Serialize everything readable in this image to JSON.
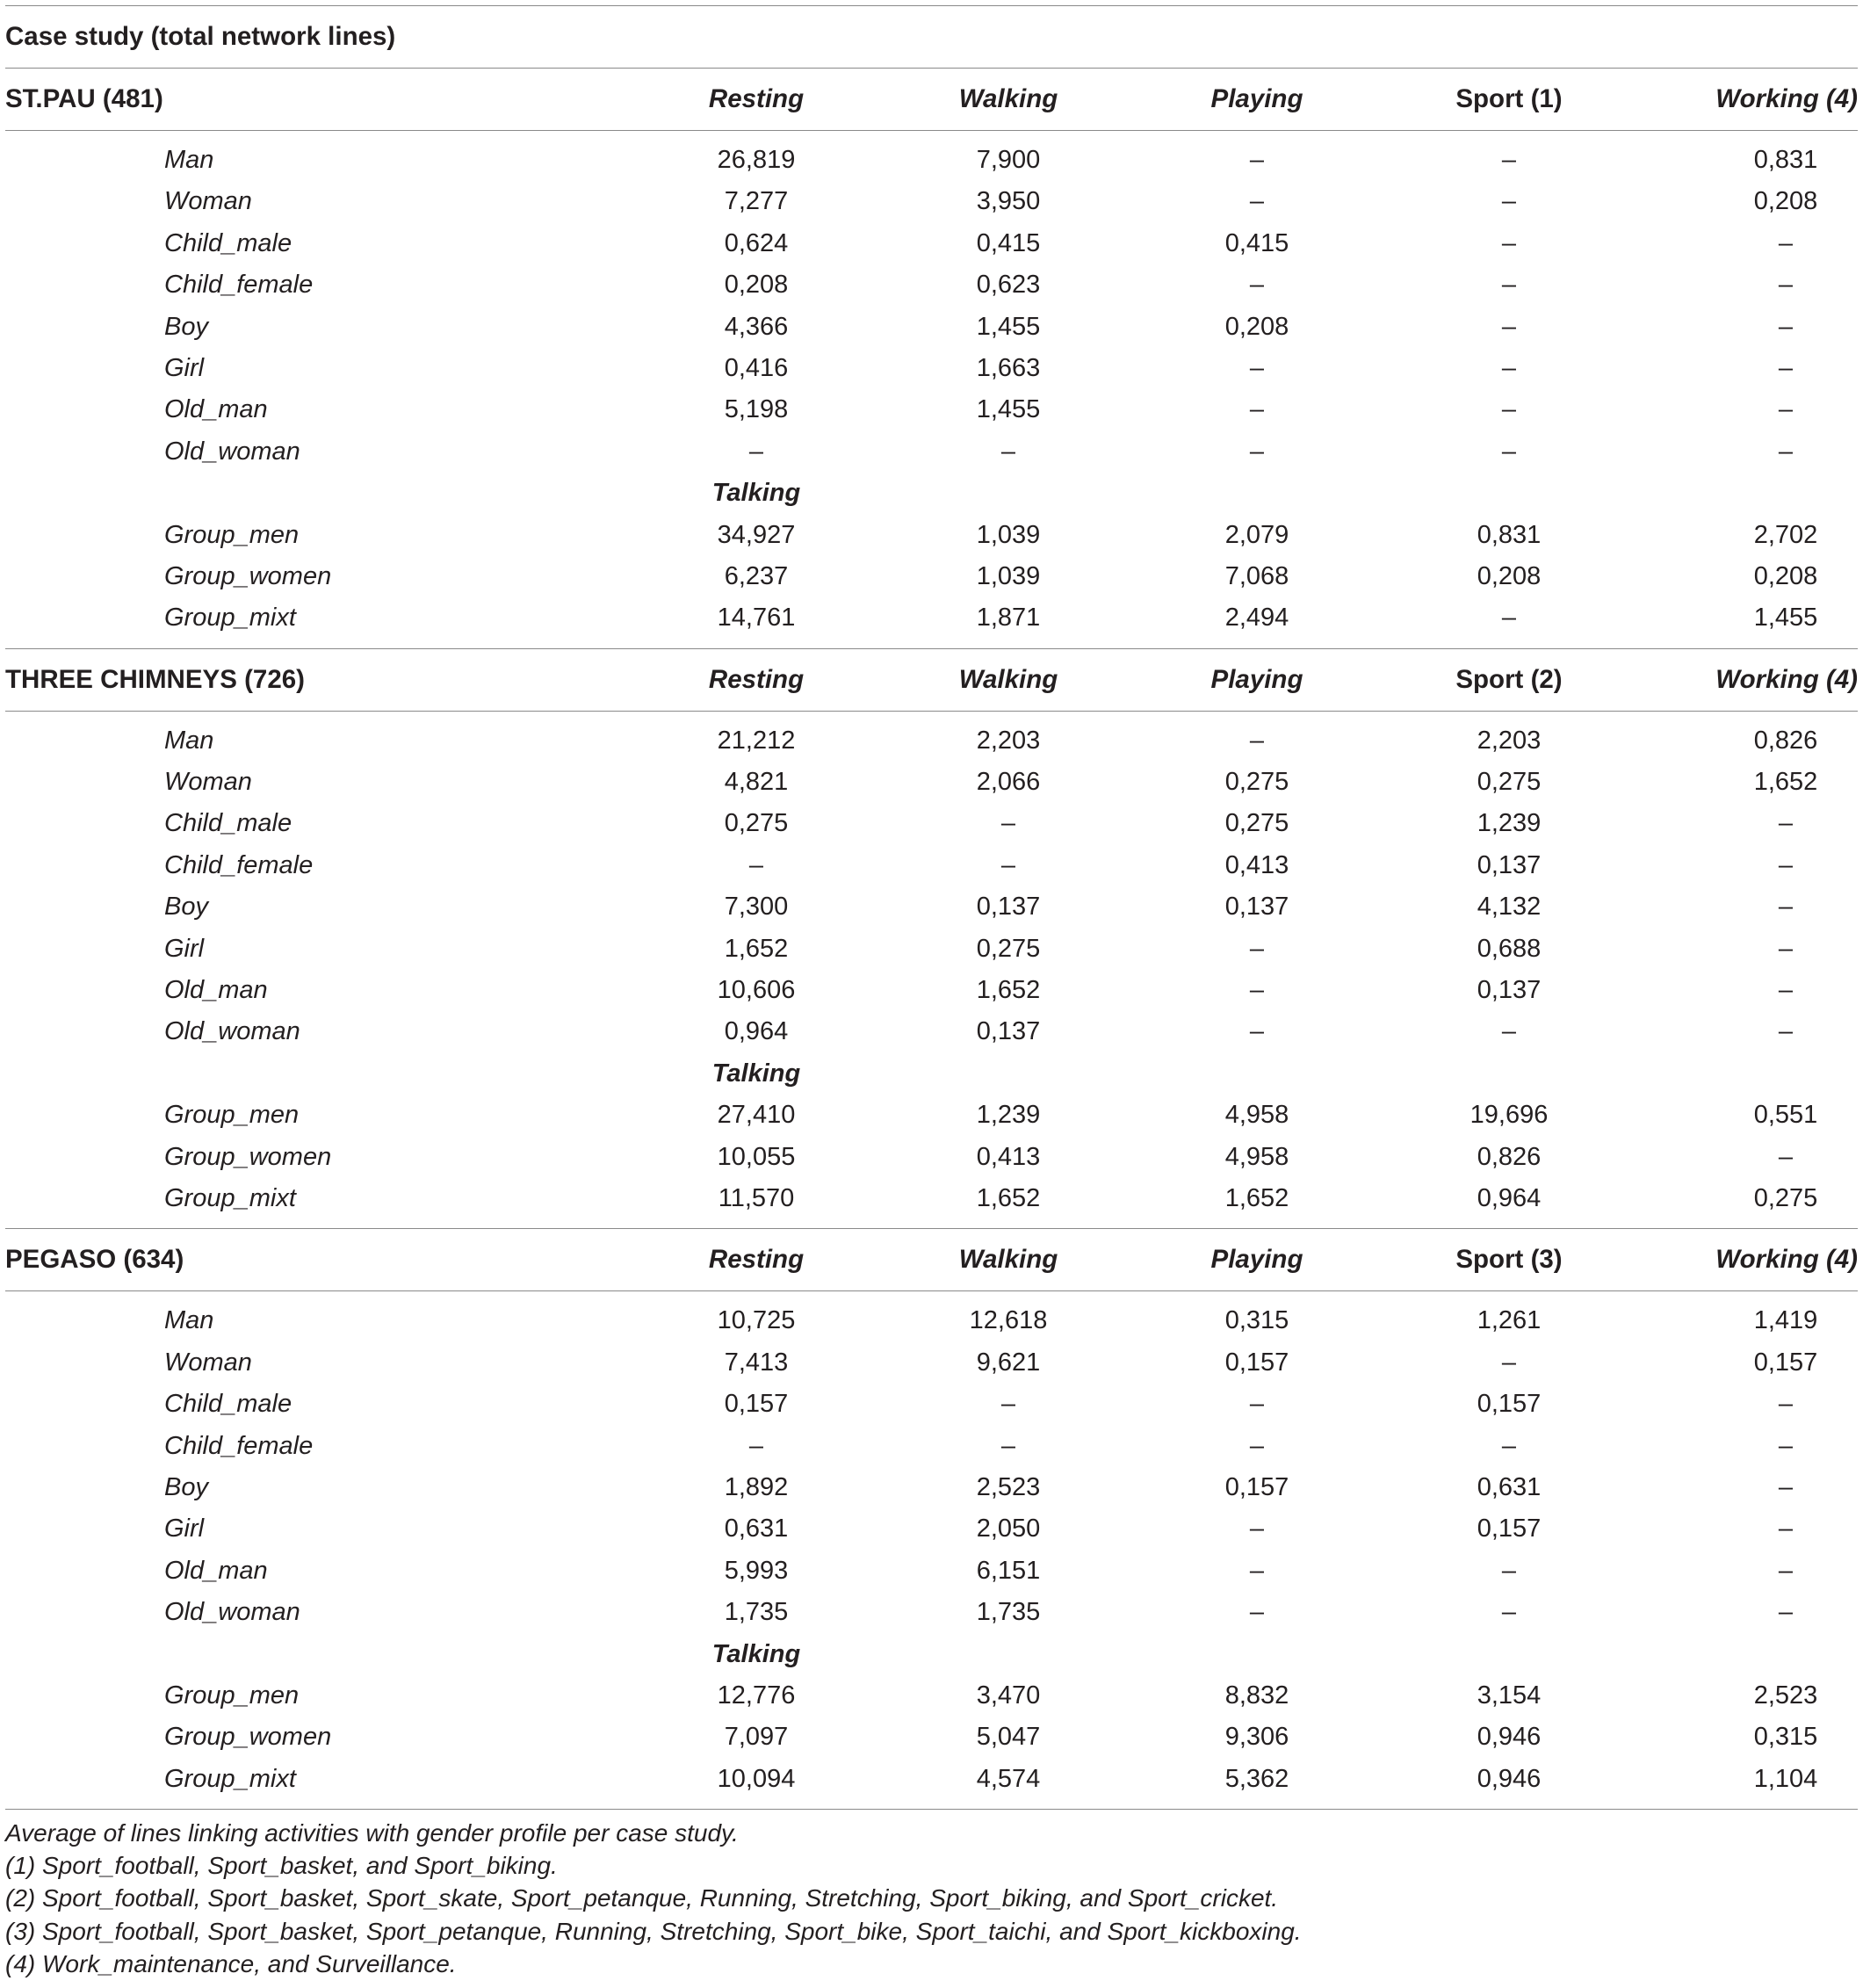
{
  "table": {
    "title": "Case study (total network lines)",
    "talking_label": "Talking",
    "sections": [
      {
        "name": "ST.PAU (481)",
        "columns": [
          "Resting",
          "Walking",
          "Playing",
          "Sport (1)",
          "Working (4)"
        ],
        "rows": [
          {
            "label": "Man",
            "values": [
              "26,819",
              "7,900",
              "–",
              "–",
              "0,831"
            ]
          },
          {
            "label": "Woman",
            "values": [
              "7,277",
              "3,950",
              "–",
              "–",
              "0,208"
            ]
          },
          {
            "label": "Child_male",
            "values": [
              "0,624",
              "0,415",
              "0,415",
              "–",
              "–"
            ]
          },
          {
            "label": "Child_female",
            "values": [
              "0,208",
              "0,623",
              "–",
              "–",
              "–"
            ]
          },
          {
            "label": "Boy",
            "values": [
              "4,366",
              "1,455",
              "0,208",
              "–",
              "–"
            ]
          },
          {
            "label": "Girl",
            "values": [
              "0,416",
              "1,663",
              "–",
              "–",
              "–"
            ]
          },
          {
            "label": "Old_man",
            "values": [
              "5,198",
              "1,455",
              "–",
              "–",
              "–"
            ]
          },
          {
            "label": "Old_woman",
            "values": [
              "–",
              "–",
              "–",
              "–",
              "–"
            ]
          }
        ],
        "group_rows": [
          {
            "label": "Group_men",
            "values": [
              "34,927",
              "1,039",
              "2,079",
              "0,831",
              "2,702"
            ]
          },
          {
            "label": "Group_women",
            "values": [
              "6,237",
              "1,039",
              "7,068",
              "0,208",
              "0,208"
            ]
          },
          {
            "label": "Group_mixt",
            "values": [
              "14,761",
              "1,871",
              "2,494",
              "–",
              "1,455"
            ]
          }
        ]
      },
      {
        "name": "THREE CHIMNEYS (726)",
        "columns": [
          "Resting",
          "Walking",
          "Playing",
          "Sport (2)",
          "Working (4)"
        ],
        "rows": [
          {
            "label": "Man",
            "values": [
              "21,212",
              "2,203",
              "–",
              "2,203",
              "0,826"
            ]
          },
          {
            "label": "Woman",
            "values": [
              "4,821",
              "2,066",
              "0,275",
              "0,275",
              "1,652"
            ]
          },
          {
            "label": "Child_male",
            "values": [
              "0,275",
              "–",
              "0,275",
              "1,239",
              "–"
            ]
          },
          {
            "label": "Child_female",
            "values": [
              "–",
              "–",
              "0,413",
              "0,137",
              "–"
            ]
          },
          {
            "label": "Boy",
            "values": [
              "7,300",
              "0,137",
              "0,137",
              "4,132",
              "–"
            ]
          },
          {
            "label": "Girl",
            "values": [
              "1,652",
              "0,275",
              "–",
              "0,688",
              "–"
            ]
          },
          {
            "label": "Old_man",
            "values": [
              "10,606",
              "1,652",
              "–",
              "0,137",
              "–"
            ]
          },
          {
            "label": "Old_woman",
            "values": [
              "0,964",
              "0,137",
              "–",
              "–",
              "–"
            ]
          }
        ],
        "group_rows": [
          {
            "label": "Group_men",
            "values": [
              "27,410",
              "1,239",
              "4,958",
              "19,696",
              "0,551"
            ]
          },
          {
            "label": "Group_women",
            "values": [
              "10,055",
              "0,413",
              "4,958",
              "0,826",
              "–"
            ]
          },
          {
            "label": "Group_mixt",
            "values": [
              "11,570",
              "1,652",
              "1,652",
              "0,964",
              "0,275"
            ]
          }
        ]
      },
      {
        "name": "PEGASO (634)",
        "columns": [
          "Resting",
          "Walking",
          "Playing",
          "Sport (3)",
          "Working (4)"
        ],
        "rows": [
          {
            "label": "Man",
            "values": [
              "10,725",
              "12,618",
              "0,315",
              "1,261",
              "1,419"
            ]
          },
          {
            "label": "Woman",
            "values": [
              "7,413",
              "9,621",
              "0,157",
              "–",
              "0,157"
            ]
          },
          {
            "label": "Child_male",
            "values": [
              "0,157",
              "–",
              "–",
              "0,157",
              "–"
            ]
          },
          {
            "label": "Child_female",
            "values": [
              "–",
              "–",
              "–",
              "–",
              "–"
            ]
          },
          {
            "label": "Boy",
            "values": [
              "1,892",
              "2,523",
              "0,157",
              "0,631",
              "–"
            ]
          },
          {
            "label": "Girl",
            "values": [
              "0,631",
              "2,050",
              "–",
              "0,157",
              "–"
            ]
          },
          {
            "label": "Old_man",
            "values": [
              "5,993",
              "6,151",
              "–",
              "–",
              "–"
            ]
          },
          {
            "label": "Old_woman",
            "values": [
              "1,735",
              "1,735",
              "–",
              "–",
              "–"
            ]
          }
        ],
        "group_rows": [
          {
            "label": "Group_men",
            "values": [
              "12,776",
              "3,470",
              "8,832",
              "3,154",
              "2,523"
            ]
          },
          {
            "label": "Group_women",
            "values": [
              "7,097",
              "5,047",
              "9,306",
              "0,946",
              "0,315"
            ]
          },
          {
            "label": "Group_mixt",
            "values": [
              "10,094",
              "4,574",
              "5,362",
              "0,946",
              "1,104"
            ]
          }
        ]
      }
    ],
    "notes": [
      "Average of lines linking activities with gender profile per case study.",
      "(1) Sport_football, Sport_basket, and Sport_biking.",
      "(2) Sport_football, Sport_basket, Sport_skate, Sport_petanque, Running, Stretching, Sport_biking, and Sport_cricket.",
      "(3) Sport_football, Sport_basket, Sport_petanque, Running, Stretching, Sport_bike, Sport_taichi, and Sport_kickboxing.",
      "(4) Work_maintenance, and Surveillance."
    ]
  }
}
